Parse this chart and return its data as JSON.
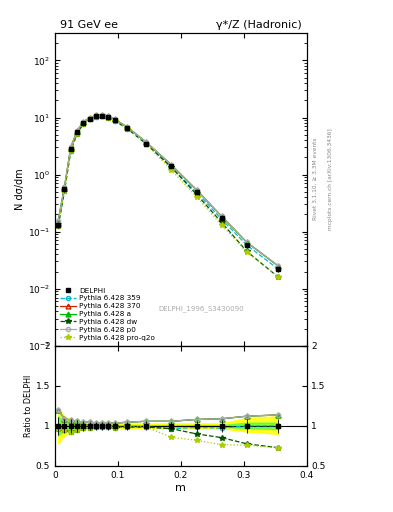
{
  "title_left": "91 GeV ee",
  "title_right": "γ*/Z (Hadronic)",
  "ylabel_main": "N dσ/dm",
  "ylabel_ratio": "Ratio to DELPHI",
  "xlabel": "m",
  "right_label1": "Rivet 3.1.10, ≥ 3.3M events",
  "right_label2": "mcplots.cern.ch [arXiv:1306.3436]",
  "watermark": "DELPHI_1996_S3430090",
  "ylim_main": [
    0.001,
    300
  ],
  "xlim": [
    0.0,
    0.4
  ],
  "x_data": [
    0.005,
    0.015,
    0.025,
    0.035,
    0.045,
    0.055,
    0.065,
    0.075,
    0.085,
    0.095,
    0.115,
    0.145,
    0.185,
    0.225,
    0.265,
    0.305,
    0.355
  ],
  "delphi_y": [
    0.13,
    0.55,
    2.8,
    5.5,
    8.0,
    9.5,
    10.5,
    10.8,
    10.2,
    9.0,
    6.5,
    3.5,
    1.4,
    0.5,
    0.17,
    0.058,
    0.022
  ],
  "delphi_err": [
    0.015,
    0.05,
    0.25,
    0.4,
    0.5,
    0.5,
    0.5,
    0.5,
    0.5,
    0.4,
    0.3,
    0.2,
    0.07,
    0.03,
    0.012,
    0.005,
    0.002
  ],
  "py359_y": [
    0.125,
    0.52,
    2.6,
    5.2,
    7.8,
    9.3,
    10.3,
    10.6,
    10.0,
    8.8,
    6.4,
    3.45,
    1.35,
    0.49,
    0.165,
    0.058,
    0.022
  ],
  "py370_y": [
    0.155,
    0.6,
    3.0,
    5.8,
    8.4,
    9.9,
    10.9,
    11.2,
    10.6,
    9.3,
    6.8,
    3.7,
    1.48,
    0.54,
    0.185,
    0.065,
    0.025
  ],
  "pya_y": [
    0.155,
    0.6,
    3.0,
    5.8,
    8.4,
    9.9,
    10.9,
    11.2,
    10.6,
    9.3,
    6.8,
    3.7,
    1.48,
    0.54,
    0.185,
    0.065,
    0.025
  ],
  "pydw_y": [
    0.125,
    0.52,
    2.6,
    5.2,
    7.8,
    9.3,
    10.3,
    10.6,
    10.0,
    8.8,
    6.4,
    3.45,
    1.35,
    0.45,
    0.145,
    0.045,
    0.016
  ],
  "pyp0_y": [
    0.155,
    0.6,
    3.0,
    5.8,
    8.4,
    9.9,
    10.9,
    11.2,
    10.6,
    9.3,
    6.8,
    3.7,
    1.48,
    0.54,
    0.185,
    0.065,
    0.025
  ],
  "pyproq2o_y": [
    0.125,
    0.52,
    2.6,
    5.2,
    7.8,
    9.3,
    10.3,
    10.6,
    10.0,
    8.8,
    6.4,
    3.45,
    1.2,
    0.41,
    0.13,
    0.044,
    0.016
  ],
  "band_yellow_lo": [
    0.78,
    0.88,
    0.93,
    0.95,
    0.96,
    0.97,
    0.97,
    0.97,
    0.97,
    0.97,
    0.97,
    0.97,
    0.97,
    0.97,
    0.97,
    0.93,
    0.9
  ],
  "band_yellow_hi": [
    1.22,
    1.12,
    1.07,
    1.05,
    1.04,
    1.03,
    1.03,
    1.03,
    1.03,
    1.03,
    1.03,
    1.03,
    1.03,
    1.03,
    1.03,
    1.1,
    1.12
  ],
  "band_green_lo": [
    0.88,
    0.94,
    0.97,
    0.98,
    0.99,
    0.99,
    0.99,
    0.99,
    0.99,
    0.99,
    0.99,
    0.99,
    0.99,
    0.99,
    0.99,
    0.97,
    0.96
  ],
  "band_green_hi": [
    1.12,
    1.06,
    1.03,
    1.02,
    1.01,
    1.01,
    1.01,
    1.01,
    1.01,
    1.01,
    1.01,
    1.01,
    1.01,
    1.01,
    1.01,
    1.04,
    1.04
  ],
  "color_359": "#00bbcc",
  "color_370": "#cc2200",
  "color_a": "#00bb00",
  "color_dw": "#005500",
  "color_p0": "#aaaaaa",
  "color_proq2o": "#aacc00",
  "bg_color": "#ffffff"
}
